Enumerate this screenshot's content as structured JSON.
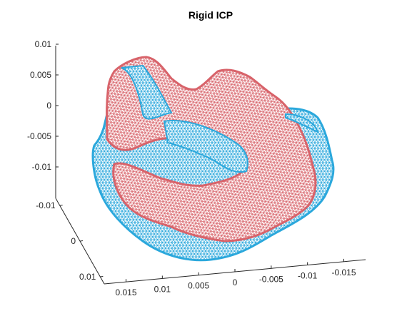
{
  "chart_data": {
    "type": "3d-wireframe",
    "title": "Rigid ICP",
    "xlabel": "",
    "ylabel": "",
    "zlabel": "",
    "z_axis": {
      "range": [
        -0.012,
        0.01
      ],
      "ticks": [
        0.01,
        0.005,
        0,
        -0.005,
        -0.01
      ],
      "tick_labels": [
        "0.01",
        "0.005",
        "0",
        "-0.005",
        "-0.01"
      ]
    },
    "left_depth_axis": {
      "range": [
        -0.012,
        0.012
      ],
      "ticks": [
        -0.01,
        0,
        0.01
      ],
      "tick_labels": [
        "-0.01",
        "0",
        "0.01"
      ]
    },
    "bottom_axis": {
      "range": [
        0.018,
        -0.018
      ],
      "ticks": [
        0.015,
        0.01,
        0.005,
        0,
        -0.005,
        -0.01,
        -0.015
      ],
      "tick_labels": [
        "0.015",
        "0.01",
        "0.005",
        "0",
        "-0.005",
        "-0.01",
        "-0.015"
      ]
    },
    "series": [
      {
        "color": "#2ba8dc"
      },
      {
        "color": "#d8636a"
      }
    ],
    "grid": false,
    "legend": "none"
  }
}
